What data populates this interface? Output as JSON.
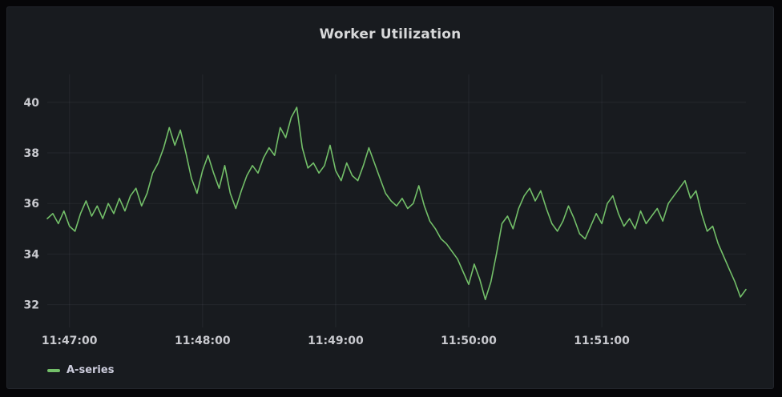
{
  "panel": {
    "title": "Worker Utilization"
  },
  "legend": {
    "items": [
      {
        "label": "A-series",
        "color": "#73BF69"
      }
    ]
  },
  "colors": {
    "panel_bg": "#181b1f",
    "page_bg": "#060608",
    "grid": "rgba(204,204,220,0.07)",
    "tick_label": "#c8c9ce",
    "title": "#d8d9da",
    "series_green": "#73BF69"
  },
  "chart_data": {
    "type": "line",
    "title": "Worker Utilization",
    "xlabel": "",
    "ylabel": "",
    "x_unit": "time",
    "x_start": "11:46:50",
    "x_end": "11:52:05",
    "sample_interval_seconds": 2.5,
    "x_ticks": [
      {
        "offset_seconds": 10,
        "label": "11:47:00"
      },
      {
        "offset_seconds": 70,
        "label": "11:48:00"
      },
      {
        "offset_seconds": 130,
        "label": "11:49:00"
      },
      {
        "offset_seconds": 190,
        "label": "11:50:00"
      },
      {
        "offset_seconds": 250,
        "label": "11:51:00"
      }
    ],
    "y_ticks": [
      32,
      34,
      36,
      38,
      40
    ],
    "y_range": [
      31.1,
      41.1
    ],
    "grid": true,
    "legend_position": "bottom-left",
    "series": [
      {
        "name": "A-series",
        "color": "#73BF69",
        "values": [
          35.4,
          35.6,
          35.2,
          35.7,
          35.1,
          34.9,
          35.6,
          36.1,
          35.5,
          35.9,
          35.4,
          36.0,
          35.6,
          36.2,
          35.7,
          36.3,
          36.6,
          35.9,
          36.4,
          37.2,
          37.6,
          38.2,
          39.0,
          38.3,
          38.9,
          38.0,
          37.0,
          36.4,
          37.3,
          37.9,
          37.2,
          36.6,
          37.5,
          36.4,
          35.8,
          36.5,
          37.1,
          37.5,
          37.2,
          37.8,
          38.2,
          37.9,
          39.0,
          38.6,
          39.4,
          39.8,
          38.2,
          37.4,
          37.6,
          37.2,
          37.5,
          38.3,
          37.3,
          36.9,
          37.6,
          37.1,
          36.9,
          37.5,
          38.2,
          37.6,
          37.0,
          36.4,
          36.1,
          35.9,
          36.2,
          35.8,
          36.0,
          36.7,
          35.9,
          35.3,
          35.0,
          34.6,
          34.4,
          34.1,
          33.8,
          33.3,
          32.8,
          33.6,
          33.0,
          32.2,
          32.9,
          34.0,
          35.2,
          35.5,
          35.0,
          35.8,
          36.3,
          36.6,
          36.1,
          36.5,
          35.8,
          35.2,
          34.9,
          35.3,
          35.9,
          35.4,
          34.8,
          34.6,
          35.1,
          35.6,
          35.2,
          36.0,
          36.3,
          35.6,
          35.1,
          35.4,
          35.0,
          35.7,
          35.2,
          35.5,
          35.8,
          35.3,
          36.0,
          36.3,
          36.6,
          36.9,
          36.2,
          36.5,
          35.6,
          34.9,
          35.1,
          34.4,
          33.9,
          33.4,
          32.9,
          32.3,
          32.6
        ]
      }
    ]
  }
}
